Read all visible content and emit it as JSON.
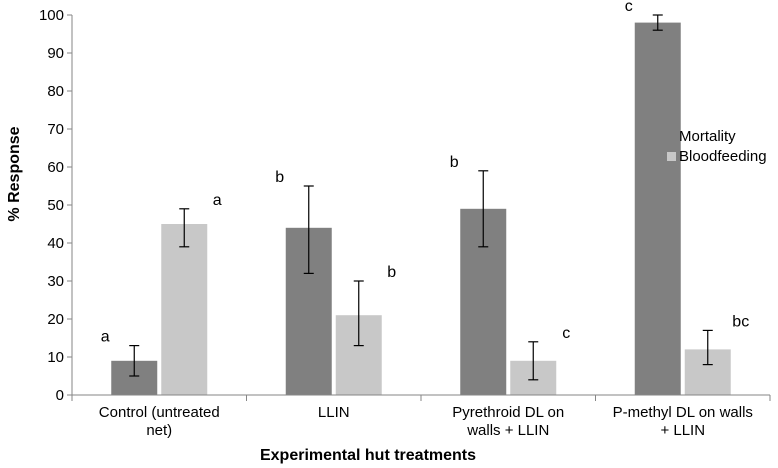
{
  "chart_data": {
    "type": "bar",
    "title": "",
    "xlabel": "Experimental hut treatments",
    "ylabel": "% Response",
    "ylim": [
      0,
      100
    ],
    "yticks": [
      0,
      10,
      20,
      30,
      40,
      50,
      60,
      70,
      80,
      90,
      100
    ],
    "grid": false,
    "legend_position": "right",
    "categories": [
      [
        "Control (untreated",
        "net)"
      ],
      [
        "LLIN"
      ],
      [
        "Pyrethroid DL on",
        "walls + LLIN"
      ],
      [
        "P-methyl DL on walls",
        "+ LLIN"
      ]
    ],
    "series": [
      {
        "name": "Mortality",
        "color": "#808080",
        "values": [
          9,
          44,
          49,
          98
        ],
        "error_low": [
          5,
          32,
          39,
          96
        ],
        "error_high": [
          13,
          55,
          59,
          100
        ],
        "significance": [
          "a",
          "b",
          "b",
          "c"
        ]
      },
      {
        "name": "Bloodfeeding",
        "color": "#c8c8c8",
        "values": [
          45,
          21,
          9,
          12
        ],
        "error_low": [
          39,
          13,
          4,
          8
        ],
        "error_high": [
          49,
          30,
          14,
          17
        ],
        "significance": [
          "a",
          "b",
          "c",
          "bc"
        ]
      }
    ]
  }
}
